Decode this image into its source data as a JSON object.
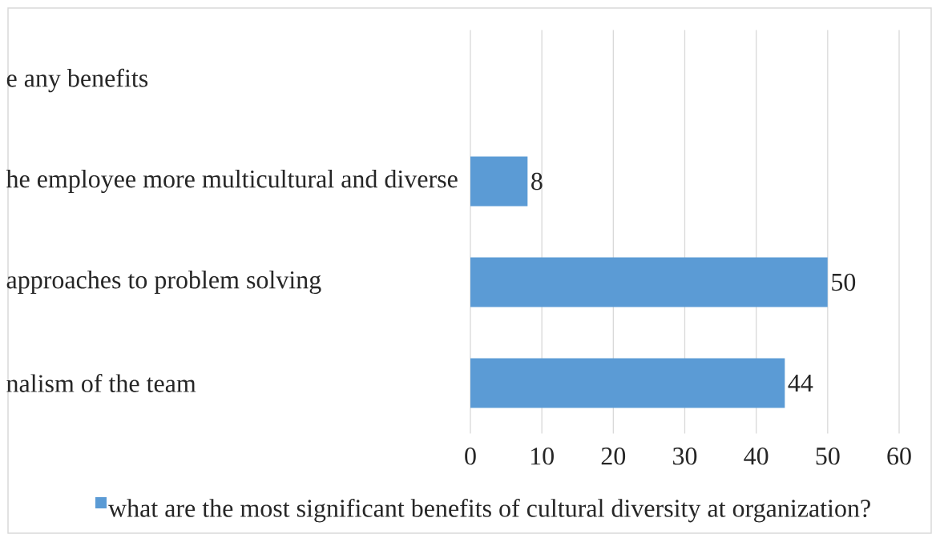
{
  "chart_data": {
    "type": "bar",
    "orientation": "horizontal",
    "categories": [
      "e any benefits",
      "he employee more multicultural and diverse",
      "approaches to problem solving",
      "nalism of the team"
    ],
    "series": [
      {
        "name": "what are the most significant benefits of cultural diversity at organization?",
        "color": "#5b9bd5",
        "values": [
          null,
          8,
          50,
          44
        ]
      }
    ],
    "xlim": [
      0,
      60
    ],
    "xticks": [
      0,
      10,
      20,
      30,
      40,
      50,
      60
    ],
    "grid": "x",
    "data_labels": true,
    "legend": "bottom"
  }
}
